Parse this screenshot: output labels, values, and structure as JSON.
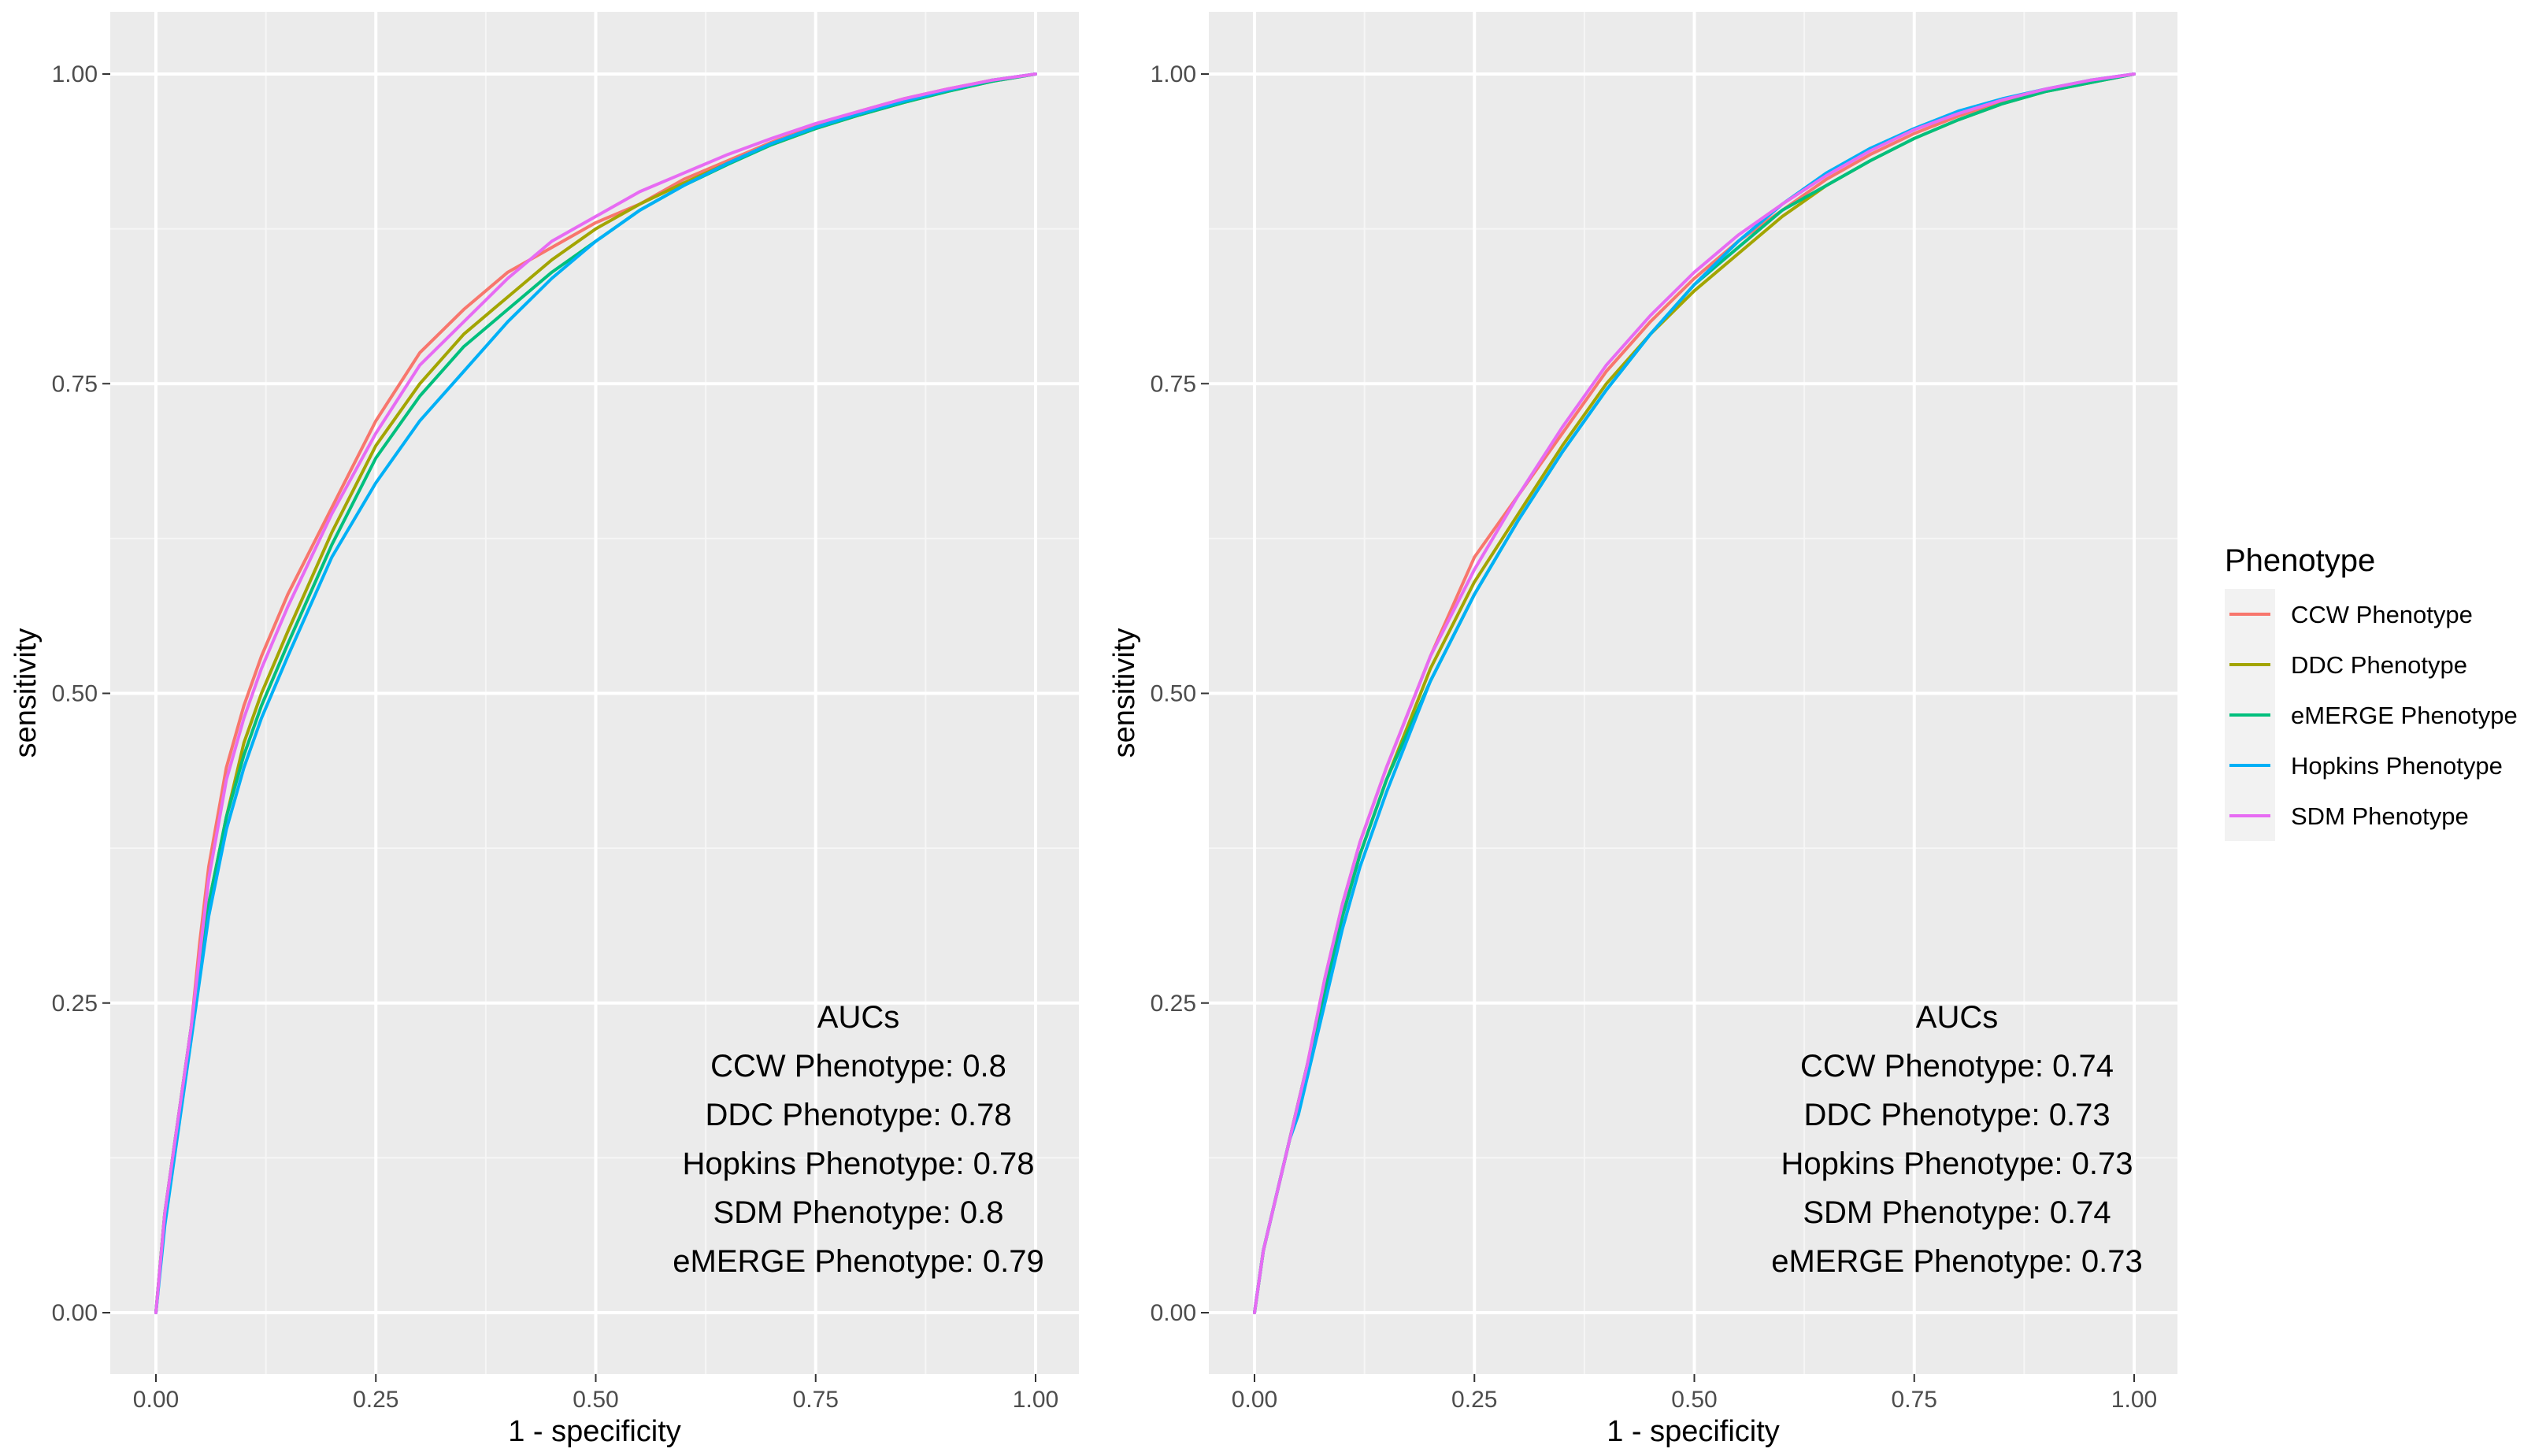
{
  "chart_data": [
    {
      "type": "line",
      "xlabel": "1 - specificity",
      "ylabel": "sensitivity",
      "xlim": [
        0,
        1
      ],
      "ylim": [
        0,
        1
      ],
      "xticks": [
        "0.00",
        "0.25",
        "0.50",
        "0.75",
        "1.00"
      ],
      "yticks": [
        "0.00",
        "0.25",
        "0.50",
        "0.75",
        "1.00"
      ],
      "annotation": {
        "title": "AUCs",
        "lines": [
          "CCW Phenotype: 0.8",
          "DDC Phenotype: 0.78",
          "Hopkins Phenotype: 0.78",
          "SDM Phenotype: 0.8",
          "eMERGE Phenotype: 0.79"
        ]
      },
      "series": [
        {
          "name": "CCW Phenotype",
          "x": [
            0,
            0.01,
            0.02,
            0.03,
            0.04,
            0.05,
            0.06,
            0.08,
            0.1,
            0.12,
            0.15,
            0.2,
            0.25,
            0.3,
            0.35,
            0.4,
            0.45,
            0.5,
            0.55,
            0.6,
            0.65,
            0.7,
            0.75,
            0.8,
            0.85,
            0.9,
            0.95,
            1
          ],
          "y": [
            0,
            0.08,
            0.13,
            0.18,
            0.23,
            0.3,
            0.36,
            0.44,
            0.49,
            0.53,
            0.58,
            0.65,
            0.72,
            0.775,
            0.81,
            0.84,
            0.86,
            0.88,
            0.895,
            0.915,
            0.93,
            0.945,
            0.958,
            0.97,
            0.98,
            0.988,
            0.995,
            1
          ]
        },
        {
          "name": "DDC Phenotype",
          "x": [
            0,
            0.01,
            0.02,
            0.03,
            0.04,
            0.05,
            0.06,
            0.08,
            0.1,
            0.12,
            0.15,
            0.2,
            0.25,
            0.3,
            0.35,
            0.4,
            0.45,
            0.5,
            0.55,
            0.6,
            0.65,
            0.7,
            0.75,
            0.8,
            0.85,
            0.9,
            0.95,
            1
          ],
          "y": [
            0,
            0.08,
            0.13,
            0.18,
            0.23,
            0.28,
            0.33,
            0.4,
            0.46,
            0.5,
            0.55,
            0.63,
            0.7,
            0.75,
            0.79,
            0.82,
            0.85,
            0.875,
            0.895,
            0.912,
            0.928,
            0.943,
            0.956,
            0.967,
            0.977,
            0.986,
            0.994,
            1
          ]
        },
        {
          "name": "eMERGE Phenotype",
          "x": [
            0,
            0.01,
            0.02,
            0.03,
            0.04,
            0.05,
            0.06,
            0.08,
            0.1,
            0.12,
            0.15,
            0.2,
            0.25,
            0.3,
            0.35,
            0.4,
            0.45,
            0.5,
            0.55,
            0.6,
            0.65,
            0.7,
            0.75,
            0.8,
            0.85,
            0.9,
            0.95,
            1
          ],
          "y": [
            0,
            0.08,
            0.13,
            0.18,
            0.23,
            0.28,
            0.33,
            0.4,
            0.45,
            0.49,
            0.54,
            0.62,
            0.69,
            0.74,
            0.78,
            0.81,
            0.84,
            0.865,
            0.89,
            0.91,
            0.927,
            0.943,
            0.956,
            0.967,
            0.977,
            0.986,
            0.994,
            1
          ]
        },
        {
          "name": "Hopkins Phenotype",
          "x": [
            0,
            0.01,
            0.02,
            0.03,
            0.04,
            0.05,
            0.06,
            0.08,
            0.1,
            0.12,
            0.15,
            0.2,
            0.25,
            0.3,
            0.35,
            0.4,
            0.45,
            0.5,
            0.55,
            0.6,
            0.65,
            0.7,
            0.75,
            0.8,
            0.85,
            0.9,
            0.95,
            1
          ],
          "y": [
            0,
            0.07,
            0.12,
            0.17,
            0.22,
            0.27,
            0.32,
            0.39,
            0.44,
            0.48,
            0.53,
            0.61,
            0.67,
            0.72,
            0.76,
            0.8,
            0.835,
            0.865,
            0.89,
            0.91,
            0.928,
            0.944,
            0.957,
            0.968,
            0.978,
            0.987,
            0.995,
            1
          ]
        },
        {
          "name": "SDM Phenotype",
          "x": [
            0,
            0.01,
            0.02,
            0.03,
            0.04,
            0.05,
            0.06,
            0.08,
            0.1,
            0.12,
            0.15,
            0.2,
            0.25,
            0.3,
            0.35,
            0.4,
            0.45,
            0.5,
            0.55,
            0.6,
            0.65,
            0.7,
            0.75,
            0.8,
            0.85,
            0.9,
            0.95,
            1
          ],
          "y": [
            0,
            0.08,
            0.13,
            0.18,
            0.23,
            0.29,
            0.35,
            0.43,
            0.48,
            0.52,
            0.57,
            0.645,
            0.71,
            0.765,
            0.8,
            0.835,
            0.865,
            0.885,
            0.905,
            0.92,
            0.935,
            0.948,
            0.96,
            0.97,
            0.98,
            0.988,
            0.995,
            1
          ]
        }
      ]
    },
    {
      "type": "line",
      "xlabel": "1 - specificity",
      "ylabel": "sensitivity",
      "xlim": [
        0,
        1
      ],
      "ylim": [
        0,
        1
      ],
      "xticks": [
        "0.00",
        "0.25",
        "0.50",
        "0.75",
        "1.00"
      ],
      "yticks": [
        "0.00",
        "0.25",
        "0.50",
        "0.75",
        "1.00"
      ],
      "annotation": {
        "title": "AUCs",
        "lines": [
          "CCW Phenotype: 0.74",
          "DDC Phenotype: 0.73",
          "Hopkins Phenotype: 0.73",
          "SDM Phenotype: 0.74",
          "eMERGE Phenotype: 0.73"
        ]
      },
      "series": [
        {
          "name": "CCW Phenotype",
          "x": [
            0,
            0.01,
            0.02,
            0.03,
            0.04,
            0.05,
            0.06,
            0.08,
            0.1,
            0.12,
            0.15,
            0.2,
            0.25,
            0.3,
            0.35,
            0.4,
            0.45,
            0.5,
            0.55,
            0.6,
            0.65,
            0.7,
            0.75,
            0.8,
            0.85,
            0.9,
            0.95,
            1
          ],
          "y": [
            0,
            0.05,
            0.08,
            0.11,
            0.14,
            0.17,
            0.2,
            0.27,
            0.33,
            0.38,
            0.44,
            0.53,
            0.61,
            0.66,
            0.71,
            0.76,
            0.8,
            0.835,
            0.865,
            0.89,
            0.915,
            0.935,
            0.952,
            0.966,
            0.978,
            0.987,
            0.994,
            1
          ]
        },
        {
          "name": "DDC Phenotype",
          "x": [
            0,
            0.01,
            0.02,
            0.03,
            0.04,
            0.05,
            0.06,
            0.08,
            0.1,
            0.12,
            0.15,
            0.2,
            0.25,
            0.3,
            0.35,
            0.4,
            0.45,
            0.5,
            0.55,
            0.6,
            0.65,
            0.7,
            0.75,
            0.8,
            0.85,
            0.9,
            0.95,
            1
          ],
          "y": [
            0,
            0.05,
            0.08,
            0.11,
            0.14,
            0.17,
            0.2,
            0.26,
            0.32,
            0.37,
            0.43,
            0.52,
            0.59,
            0.645,
            0.7,
            0.75,
            0.79,
            0.825,
            0.855,
            0.885,
            0.91,
            0.93,
            0.948,
            0.963,
            0.976,
            0.986,
            0.993,
            1
          ]
        },
        {
          "name": "eMERGE Phenotype",
          "x": [
            0,
            0.01,
            0.02,
            0.03,
            0.04,
            0.05,
            0.06,
            0.08,
            0.1,
            0.12,
            0.15,
            0.2,
            0.25,
            0.3,
            0.35,
            0.4,
            0.45,
            0.5,
            0.55,
            0.6,
            0.65,
            0.7,
            0.75,
            0.8,
            0.85,
            0.9,
            0.95,
            1
          ],
          "y": [
            0,
            0.05,
            0.08,
            0.11,
            0.14,
            0.17,
            0.2,
            0.26,
            0.32,
            0.37,
            0.43,
            0.51,
            0.58,
            0.64,
            0.695,
            0.745,
            0.79,
            0.83,
            0.86,
            0.89,
            0.91,
            0.93,
            0.948,
            0.963,
            0.976,
            0.986,
            0.993,
            1
          ]
        },
        {
          "name": "Hopkins Phenotype",
          "x": [
            0,
            0.01,
            0.02,
            0.03,
            0.04,
            0.05,
            0.06,
            0.08,
            0.1,
            0.12,
            0.15,
            0.2,
            0.25,
            0.3,
            0.35,
            0.4,
            0.45,
            0.5,
            0.55,
            0.6,
            0.65,
            0.7,
            0.75,
            0.8,
            0.85,
            0.9,
            0.95,
            1
          ],
          "y": [
            0,
            0.05,
            0.08,
            0.11,
            0.14,
            0.16,
            0.19,
            0.25,
            0.31,
            0.36,
            0.42,
            0.51,
            0.58,
            0.64,
            0.695,
            0.745,
            0.79,
            0.83,
            0.865,
            0.895,
            0.92,
            0.94,
            0.956,
            0.97,
            0.98,
            0.988,
            0.995,
            1
          ]
        },
        {
          "name": "SDM Phenotype",
          "x": [
            0,
            0.01,
            0.02,
            0.03,
            0.04,
            0.05,
            0.06,
            0.08,
            0.1,
            0.12,
            0.15,
            0.2,
            0.25,
            0.3,
            0.35,
            0.4,
            0.45,
            0.5,
            0.55,
            0.6,
            0.65,
            0.7,
            0.75,
            0.8,
            0.85,
            0.9,
            0.95,
            1
          ],
          "y": [
            0,
            0.05,
            0.08,
            0.11,
            0.14,
            0.17,
            0.2,
            0.27,
            0.33,
            0.38,
            0.44,
            0.53,
            0.6,
            0.66,
            0.715,
            0.765,
            0.805,
            0.84,
            0.87,
            0.895,
            0.918,
            0.938,
            0.955,
            0.968,
            0.979,
            0.988,
            0.995,
            1
          ]
        }
      ]
    }
  ],
  "legend": {
    "title": "Phenotype",
    "items": [
      {
        "label": "CCW Phenotype",
        "color": "#F8766D"
      },
      {
        "label": "DDC Phenotype",
        "color": "#A3A500"
      },
      {
        "label": "eMERGE Phenotype",
        "color": "#00BF7D"
      },
      {
        "label": "Hopkins Phenotype",
        "color": "#00B0F6"
      },
      {
        "label": "SDM Phenotype",
        "color": "#E76BF3"
      }
    ]
  }
}
